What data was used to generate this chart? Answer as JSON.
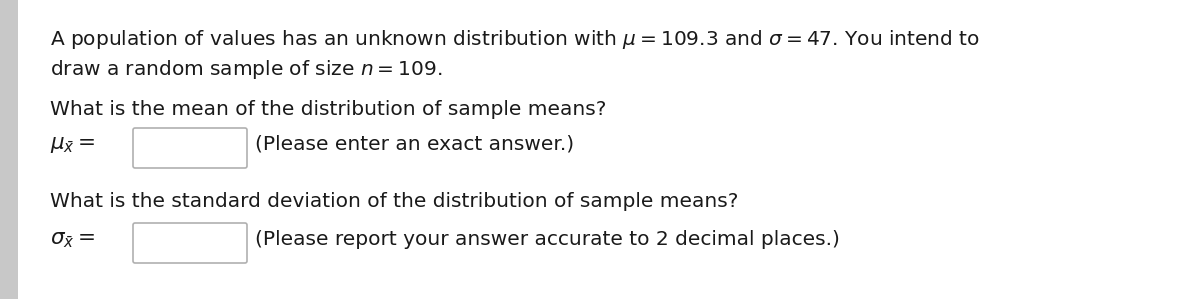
{
  "bg_color": "#ffffff",
  "left_strip_color": "#d0d0d0",
  "text_color": "#1a1a1a",
  "box_edge_color": "#b0b0b0",
  "box_face_color": "#ffffff",
  "line1": "A population of values has an unknown distribution with $\\mu = 109.3$ and $\\sigma = 47$. You intend to",
  "line2": "draw a random sample of size $n = 109$.",
  "q1_text": "What is the mean of the distribution of sample means?",
  "q1_label": "$\\mu_{\\bar{x}} =$",
  "q1_hint": "(Please enter an exact answer.)",
  "q2_text": "What is the standard deviation of the distribution of sample means?",
  "q2_label": "$\\sigma_{\\bar{x}} =$",
  "q2_hint": "(Please report your answer accurate to 2 decimal places.)",
  "font_size": 14.5,
  "label_font_size": 15.5
}
